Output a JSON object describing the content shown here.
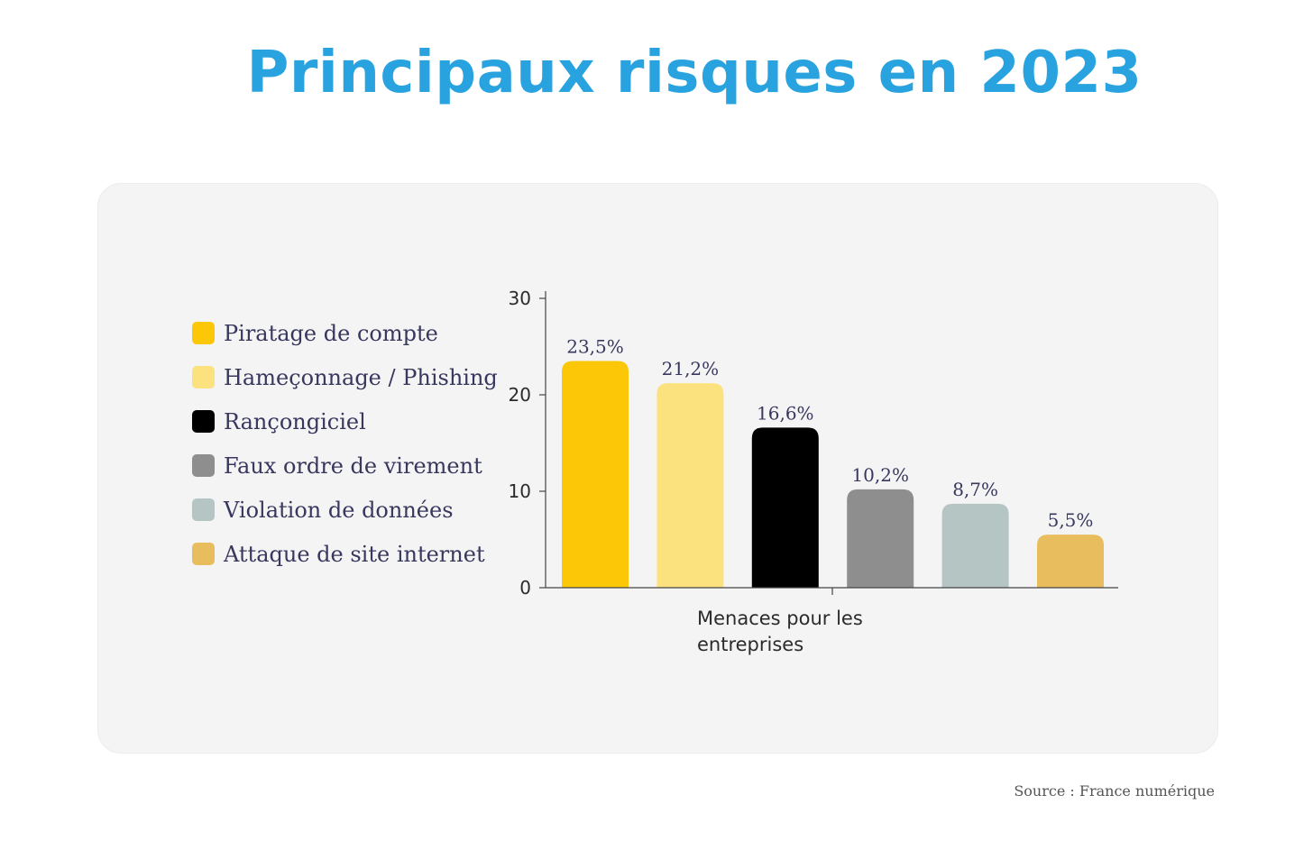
{
  "title": "Principaux risques en 2023",
  "source": "Source : France numérique",
  "colors": {
    "title": "#29a3df",
    "card_background": "#f4f4f4",
    "text": "#38375e"
  },
  "chart_data": {
    "type": "bar",
    "xlabel": "Menaces pour les entreprises",
    "xlabel_lines": [
      "Menaces pour les",
      "entreprises"
    ],
    "ylabel": "",
    "ylim": [
      0,
      30
    ],
    "yticks": [
      0,
      10,
      20,
      30
    ],
    "grid": false,
    "legend_position": "left",
    "series": [
      {
        "name": "Piratage de compte",
        "value": 23.5,
        "label": "23,5%",
        "color": "#fcc707"
      },
      {
        "name": "Hameçonnage / Phishing",
        "value": 21.2,
        "label": "21,2%",
        "color": "#fbe27f"
      },
      {
        "name": "Rançongiciel",
        "value": 16.6,
        "label": "16,6%",
        "color": "#000000"
      },
      {
        "name": "Faux ordre de virement",
        "value": 10.2,
        "label": "10,2%",
        "color": "#8e8e8e"
      },
      {
        "name": "Violation de données",
        "value": 8.7,
        "label": "8,7%",
        "color": "#b4c5c4"
      },
      {
        "name": "Attaque de site internet",
        "value": 5.5,
        "label": "5,5%",
        "color": "#e8bd5e"
      }
    ]
  }
}
